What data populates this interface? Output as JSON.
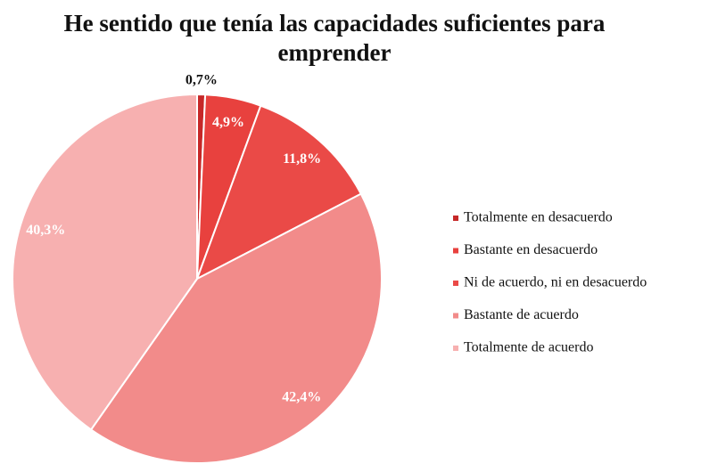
{
  "chart_data": {
    "type": "pie",
    "title": "He sentido que tenía las capacidades suficientes para emprender",
    "categories": [
      "Totalmente en desacuerdo",
      "Bastante en desacuerdo",
      "Ni de acuerdo, ni en desacuerdo",
      "Bastante de acuerdo",
      "Totalmente de acuerdo"
    ],
    "values": [
      0.7,
      4.9,
      11.8,
      42.4,
      40.3
    ],
    "value_labels": [
      "0,7%",
      "4,9%",
      "11,8%",
      "42,4%",
      "40,3%"
    ],
    "colors": [
      "#c62828",
      "#e8413e",
      "#ea4a47",
      "#f28b8a",
      "#f7b0b0"
    ],
    "legend": "right"
  }
}
